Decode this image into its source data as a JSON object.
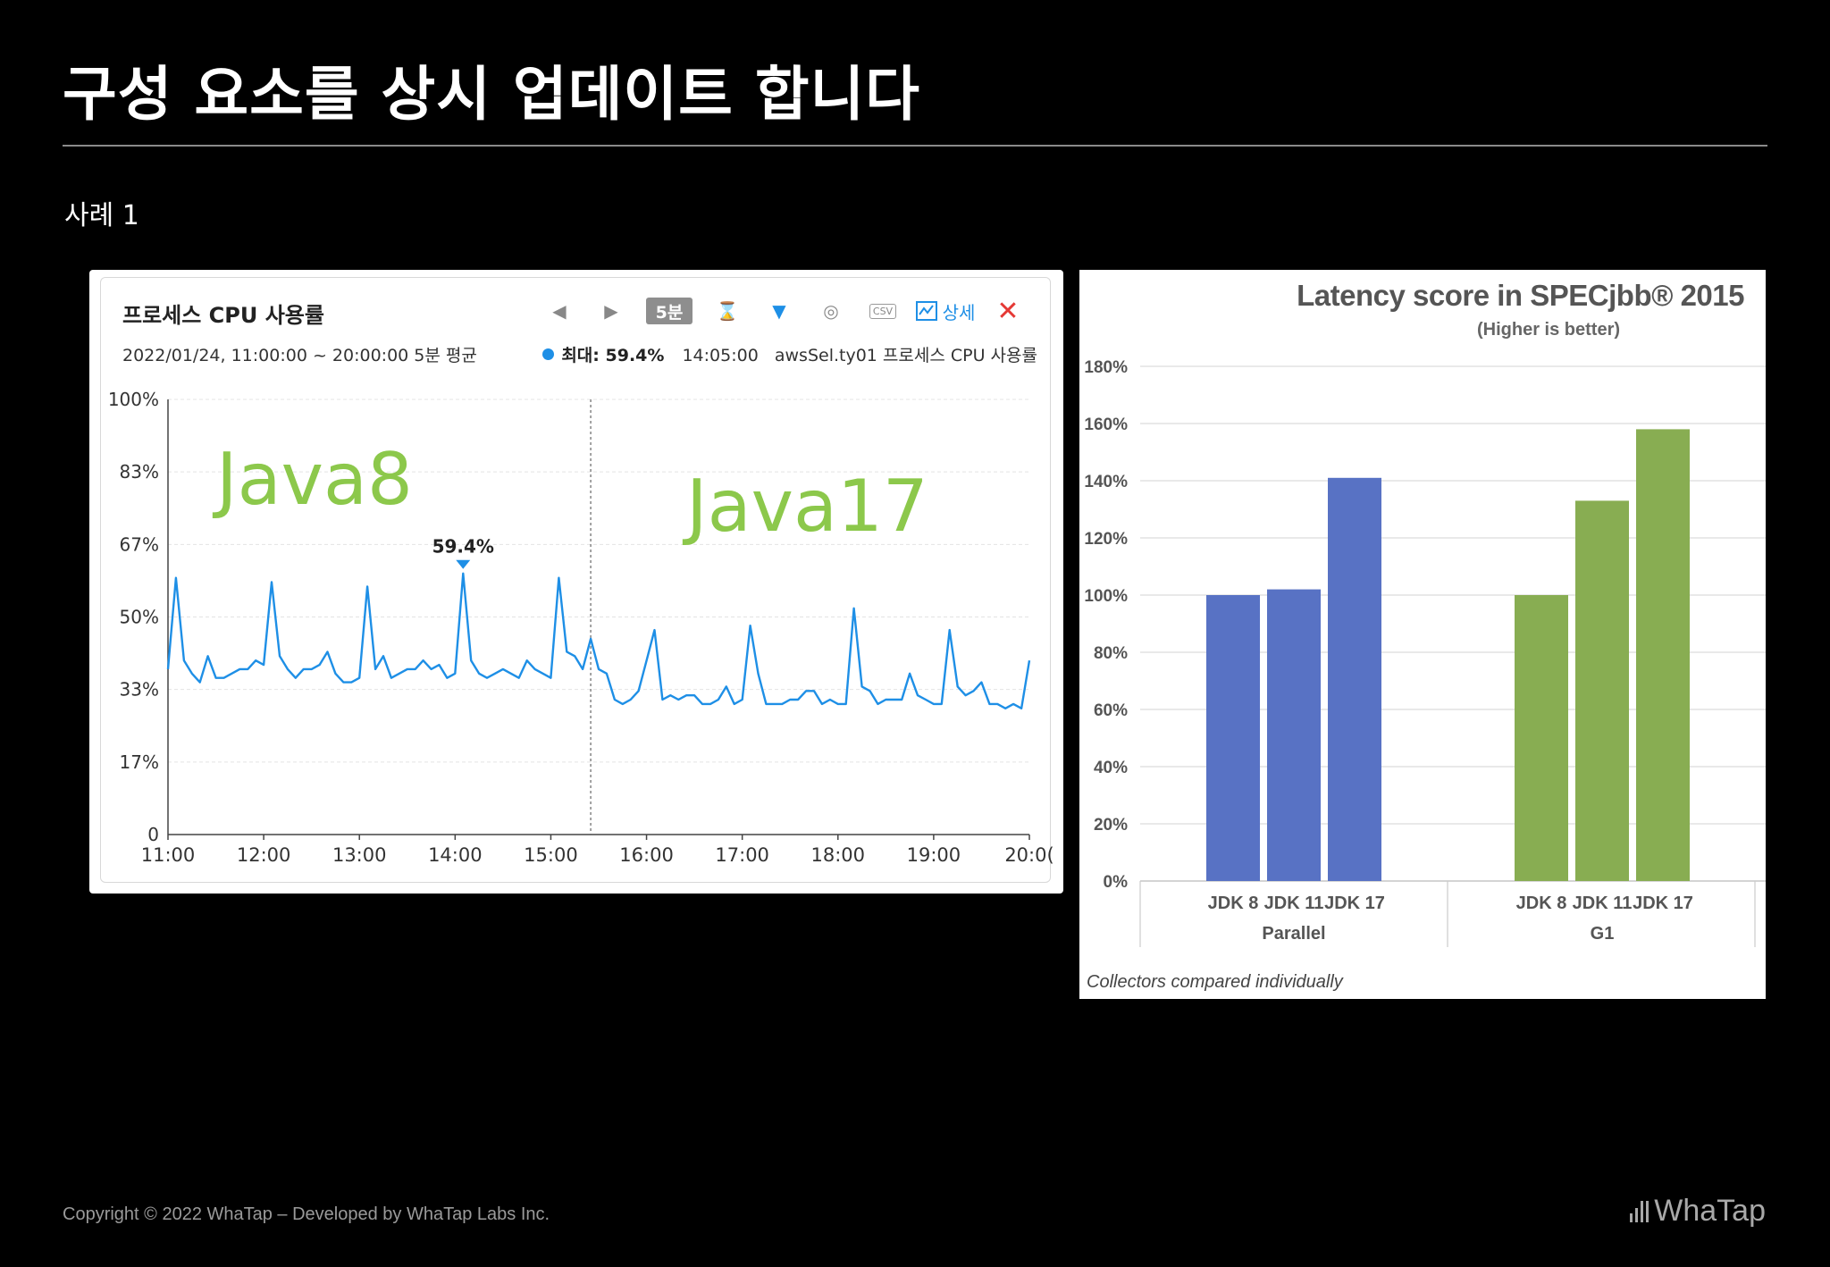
{
  "slide": {
    "title": "구성 요소를 상시 업데이트 합니다",
    "case_label": "사례 1"
  },
  "footer": {
    "copyright": "Copyright © 2022 WhaTap – Developed by WhaTap Labs Inc.",
    "logo": "WhaTap"
  },
  "cpu_panel": {
    "title": "프로세스 CPU 사용률",
    "subtitle": "2022/01/24, 11:00:00 ~ 20:00:00   5분 평균",
    "max_label": "최대: 59.4%",
    "max_time": "14:05:00",
    "max_series": "awsSel.ty01 프로세스 CPU 사용률",
    "toolbar": {
      "prev": "◀",
      "next": "▶",
      "period": "5분",
      "hourglass": "⌛",
      "filter": "▼",
      "camera": "◎",
      "csv": "CSV",
      "detail": "상세",
      "close": "✕"
    }
  },
  "chart_data": [
    {
      "type": "line",
      "title": "프로세스 CPU 사용률",
      "x_ticks": [
        "11:00",
        "12:00",
        "13:00",
        "14:00",
        "15:00",
        "16:00",
        "17:00",
        "18:00",
        "19:00",
        "20:0("
      ],
      "y_ticks": [
        "0",
        "17%",
        "33%",
        "50%",
        "67%",
        "83%",
        "100%"
      ],
      "ylim": [
        0,
        100
      ],
      "xlim": [
        0,
        540
      ],
      "x_unit": "minutes since 11:00",
      "annotations": [
        {
          "text": "Java8",
          "color": "#8cc84b"
        },
        {
          "text": "Java17",
          "color": "#8cc84b"
        }
      ],
      "peak": {
        "label": "59.4%",
        "x": 185,
        "y": 59.4
      },
      "divider_x": 265,
      "line_color": "#1e8fe6",
      "series": [
        {
          "name": "awsSel.ty01 프로세스 CPU 사용률",
          "x": [
            0,
            5,
            10,
            15,
            20,
            25,
            30,
            35,
            40,
            45,
            50,
            55,
            60,
            65,
            70,
            75,
            80,
            85,
            90,
            95,
            100,
            105,
            110,
            115,
            120,
            125,
            130,
            135,
            140,
            145,
            150,
            155,
            160,
            165,
            170,
            175,
            180,
            185,
            190,
            195,
            200,
            205,
            210,
            215,
            220,
            225,
            230,
            235,
            240,
            245,
            250,
            255,
            260,
            265,
            270,
            275,
            280,
            285,
            290,
            295,
            300,
            305,
            310,
            315,
            320,
            325,
            330,
            335,
            340,
            345,
            350,
            355,
            360,
            365,
            370,
            375,
            380,
            385,
            390,
            395,
            400,
            405,
            410,
            415,
            420,
            425,
            430,
            435,
            440,
            445,
            450,
            455,
            460,
            465,
            470,
            475,
            480,
            485,
            490,
            495,
            500,
            505,
            510,
            515,
            520,
            525,
            530,
            535,
            540
          ],
          "y": [
            38,
            59,
            40,
            37,
            35,
            41,
            36,
            36,
            37,
            38,
            38,
            40,
            39,
            58,
            41,
            38,
            36,
            38,
            38,
            39,
            42,
            37,
            35,
            35,
            36,
            57,
            38,
            41,
            36,
            37,
            38,
            38,
            40,
            38,
            39,
            36,
            37,
            60,
            40,
            37,
            36,
            37,
            38,
            37,
            36,
            40,
            38,
            37,
            36,
            59,
            42,
            41,
            38,
            45,
            38,
            37,
            31,
            30,
            31,
            33,
            40,
            47,
            31,
            32,
            31,
            32,
            32,
            30,
            30,
            31,
            34,
            30,
            31,
            48,
            37,
            30,
            30,
            30,
            31,
            31,
            33,
            33,
            30,
            31,
            30,
            30,
            52,
            34,
            33,
            30,
            31,
            31,
            31,
            37,
            32,
            31,
            30,
            30,
            47,
            34,
            32,
            33,
            35,
            30,
            30,
            29,
            30,
            29,
            40
          ]
        }
      ]
    },
    {
      "type": "bar",
      "title": "Latency score in SPECjbb® 2015",
      "subtitle": "(Higher is better)",
      "ylabel": "",
      "ylim": [
        0,
        180
      ],
      "y_ticks": [
        "0%",
        "20%",
        "40%",
        "60%",
        "80%",
        "100%",
        "120%",
        "140%",
        "160%",
        "180%"
      ],
      "footnote": "Collectors compared individually",
      "groups": [
        {
          "name": "Parallel",
          "color": "#5872c4",
          "categories": [
            "JDK 8",
            "JDK 11",
            "JDK 17"
          ],
          "values": [
            100,
            102,
            141
          ]
        },
        {
          "name": "G1",
          "color": "#88ad52",
          "categories": [
            "JDK 8",
            "JDK 11",
            "JDK 17"
          ],
          "values": [
            100,
            133,
            158
          ]
        }
      ]
    }
  ]
}
